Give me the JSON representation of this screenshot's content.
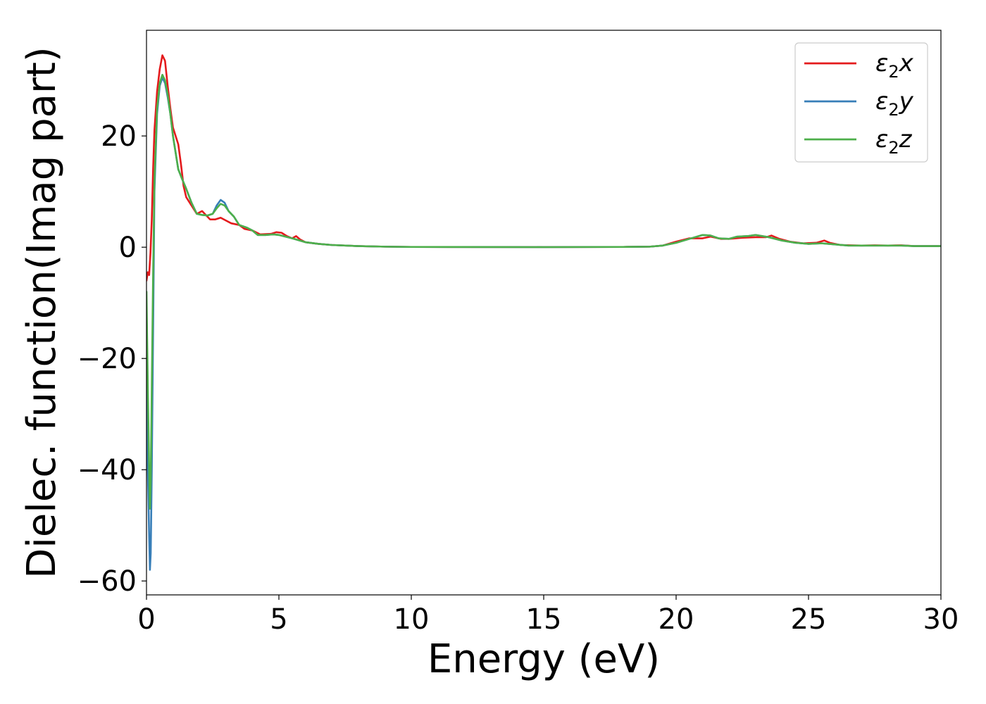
{
  "chart_data": {
    "type": "line",
    "xlabel": "Energy (eV)",
    "ylabel": "Dielec. function(Imag part)",
    "xlim": [
      0,
      30
    ],
    "ylim": [
      -62.5,
      39
    ],
    "xticks": [
      0,
      5,
      10,
      15,
      20,
      25,
      30
    ],
    "yticks": [
      -60,
      -40,
      -20,
      0,
      20
    ],
    "grid": false,
    "legend_position": "top-right",
    "series": [
      {
        "name": "ε₂x",
        "label_base": "ε",
        "label_sub": "2",
        "label_var": "x",
        "color": "#e41a1c",
        "points": [
          [
            0.0,
            -6
          ],
          [
            0.05,
            -4.5
          ],
          [
            0.1,
            -5
          ],
          [
            0.15,
            -1
          ],
          [
            0.2,
            5
          ],
          [
            0.25,
            14
          ],
          [
            0.3,
            21
          ],
          [
            0.4,
            28
          ],
          [
            0.5,
            32
          ],
          [
            0.6,
            34.5
          ],
          [
            0.7,
            33.5
          ],
          [
            0.8,
            29
          ],
          [
            0.9,
            25
          ],
          [
            1.0,
            21.5
          ],
          [
            1.1,
            20
          ],
          [
            1.2,
            18.5
          ],
          [
            1.3,
            15
          ],
          [
            1.4,
            11
          ],
          [
            1.5,
            9
          ],
          [
            1.7,
            7.5
          ],
          [
            1.9,
            6
          ],
          [
            2.1,
            6.5
          ],
          [
            2.2,
            6
          ],
          [
            2.4,
            5
          ],
          [
            2.6,
            5
          ],
          [
            2.8,
            5.3
          ],
          [
            3.0,
            4.8
          ],
          [
            3.2,
            4.3
          ],
          [
            3.5,
            4
          ],
          [
            3.7,
            3.3
          ],
          [
            4.0,
            3
          ],
          [
            4.3,
            2.3
          ],
          [
            4.7,
            2.4
          ],
          [
            4.9,
            2.7
          ],
          [
            5.1,
            2.6
          ],
          [
            5.3,
            2
          ],
          [
            5.5,
            1.6
          ],
          [
            5.65,
            2
          ],
          [
            5.8,
            1.4
          ],
          [
            6.0,
            0.9
          ],
          [
            6.5,
            0.6
          ],
          [
            7.0,
            0.4
          ],
          [
            8.0,
            0.2
          ],
          [
            9.0,
            0.1
          ],
          [
            10.0,
            0.05
          ],
          [
            15.0,
            0.02
          ],
          [
            18.0,
            0.05
          ],
          [
            19.0,
            0.1
          ],
          [
            19.5,
            0.3
          ],
          [
            20.0,
            1
          ],
          [
            20.5,
            1.6
          ],
          [
            21.0,
            1.6
          ],
          [
            21.3,
            1.9
          ],
          [
            21.7,
            1.5
          ],
          [
            22.0,
            1.5
          ],
          [
            22.5,
            1.7
          ],
          [
            23.0,
            1.8
          ],
          [
            23.4,
            1.8
          ],
          [
            23.6,
            2.1
          ],
          [
            23.9,
            1.5
          ],
          [
            24.3,
            1
          ],
          [
            24.8,
            0.7
          ],
          [
            25.3,
            0.8
          ],
          [
            25.6,
            1.2
          ],
          [
            25.8,
            0.8
          ],
          [
            26.2,
            0.4
          ],
          [
            27.0,
            0.3
          ],
          [
            27.5,
            0.35
          ],
          [
            28.0,
            0.3
          ],
          [
            28.5,
            0.35
          ],
          [
            29.0,
            0.2
          ],
          [
            30.0,
            0.2
          ]
        ]
      },
      {
        "name": "ε₂y",
        "label_base": "ε",
        "label_sub": "2",
        "label_var": "y",
        "color": "#377eb8",
        "points": [
          [
            0.0,
            -20
          ],
          [
            0.05,
            -40
          ],
          [
            0.1,
            -52
          ],
          [
            0.13,
            -58
          ],
          [
            0.16,
            -55
          ],
          [
            0.2,
            -40
          ],
          [
            0.25,
            -15
          ],
          [
            0.3,
            10
          ],
          [
            0.4,
            24
          ],
          [
            0.5,
            29
          ],
          [
            0.6,
            30.5
          ],
          [
            0.7,
            29.5
          ],
          [
            0.8,
            27
          ],
          [
            0.9,
            24
          ],
          [
            1.0,
            20
          ],
          [
            1.1,
            17
          ],
          [
            1.2,
            14
          ],
          [
            1.35,
            12.2
          ],
          [
            1.5,
            10.5
          ],
          [
            1.7,
            8
          ],
          [
            1.9,
            6
          ],
          [
            2.1,
            5.8
          ],
          [
            2.3,
            5.7
          ],
          [
            2.5,
            6
          ],
          [
            2.65,
            7.5
          ],
          [
            2.8,
            8.5
          ],
          [
            2.95,
            8
          ],
          [
            3.1,
            6.5
          ],
          [
            3.3,
            5.5
          ],
          [
            3.5,
            4
          ],
          [
            3.8,
            3.5
          ],
          [
            4.0,
            3
          ],
          [
            4.2,
            2.2
          ],
          [
            4.5,
            2.2
          ],
          [
            4.8,
            2.3
          ],
          [
            5.0,
            2.2
          ],
          [
            5.5,
            1.6
          ],
          [
            6.0,
            0.9
          ],
          [
            6.5,
            0.6
          ],
          [
            7.0,
            0.4
          ],
          [
            8.0,
            0.2
          ],
          [
            9.0,
            0.1
          ],
          [
            10.0,
            0.05
          ],
          [
            15.0,
            0.02
          ],
          [
            18.0,
            0.05
          ],
          [
            19.0,
            0.1
          ],
          [
            19.5,
            0.3
          ],
          [
            20.0,
            0.8
          ],
          [
            20.5,
            1.5
          ],
          [
            21.0,
            2.2
          ],
          [
            21.3,
            2.1
          ],
          [
            21.6,
            1.6
          ],
          [
            22.0,
            1.5
          ],
          [
            22.3,
            1.9
          ],
          [
            22.7,
            2
          ],
          [
            23.0,
            2.2
          ],
          [
            23.5,
            1.8
          ],
          [
            24.0,
            1.2
          ],
          [
            24.5,
            0.8
          ],
          [
            25.0,
            0.6
          ],
          [
            25.5,
            0.7
          ],
          [
            26.0,
            0.5
          ],
          [
            26.5,
            0.3
          ],
          [
            27.5,
            0.3
          ],
          [
            28.5,
            0.3
          ],
          [
            29.0,
            0.2
          ],
          [
            30.0,
            0.2
          ]
        ]
      },
      {
        "name": "ε₂z",
        "label_base": "ε",
        "label_sub": "2",
        "label_var": "z",
        "color": "#4daf4a",
        "points": [
          [
            0.0,
            -8
          ],
          [
            0.05,
            -25
          ],
          [
            0.1,
            -40
          ],
          [
            0.13,
            -47
          ],
          [
            0.16,
            -42
          ],
          [
            0.2,
            -25
          ],
          [
            0.25,
            -5
          ],
          [
            0.3,
            12
          ],
          [
            0.4,
            25
          ],
          [
            0.5,
            29.5
          ],
          [
            0.6,
            31
          ],
          [
            0.7,
            30
          ],
          [
            0.8,
            27.5
          ],
          [
            0.9,
            24
          ],
          [
            1.0,
            20
          ],
          [
            1.1,
            17
          ],
          [
            1.2,
            14
          ],
          [
            1.35,
            12.2
          ],
          [
            1.5,
            10.5
          ],
          [
            1.7,
            8
          ],
          [
            1.9,
            6
          ],
          [
            2.1,
            5.8
          ],
          [
            2.3,
            5.7
          ],
          [
            2.5,
            6
          ],
          [
            2.65,
            7
          ],
          [
            2.8,
            7.8
          ],
          [
            2.95,
            7.5
          ],
          [
            3.1,
            6.5
          ],
          [
            3.3,
            5.5
          ],
          [
            3.5,
            4
          ],
          [
            3.8,
            3.5
          ],
          [
            4.0,
            3
          ],
          [
            4.2,
            2.2
          ],
          [
            4.5,
            2.2
          ],
          [
            4.8,
            2.3
          ],
          [
            5.0,
            2.2
          ],
          [
            5.5,
            1.6
          ],
          [
            6.0,
            0.9
          ],
          [
            6.5,
            0.6
          ],
          [
            7.0,
            0.4
          ],
          [
            8.0,
            0.2
          ],
          [
            9.0,
            0.1
          ],
          [
            10.0,
            0.05
          ],
          [
            15.0,
            0.02
          ],
          [
            18.0,
            0.05
          ],
          [
            19.0,
            0.1
          ],
          [
            19.5,
            0.3
          ],
          [
            20.0,
            0.8
          ],
          [
            20.5,
            1.5
          ],
          [
            21.0,
            2.2
          ],
          [
            21.3,
            2.1
          ],
          [
            21.6,
            1.6
          ],
          [
            22.0,
            1.5
          ],
          [
            22.3,
            1.9
          ],
          [
            22.7,
            2
          ],
          [
            23.0,
            2.2
          ],
          [
            23.5,
            1.8
          ],
          [
            24.0,
            1.2
          ],
          [
            24.5,
            0.8
          ],
          [
            25.0,
            0.6
          ],
          [
            25.5,
            0.7
          ],
          [
            26.0,
            0.5
          ],
          [
            26.5,
            0.3
          ],
          [
            27.5,
            0.3
          ],
          [
            28.5,
            0.3
          ],
          [
            29.0,
            0.2
          ],
          [
            30.0,
            0.2
          ]
        ]
      }
    ]
  }
}
